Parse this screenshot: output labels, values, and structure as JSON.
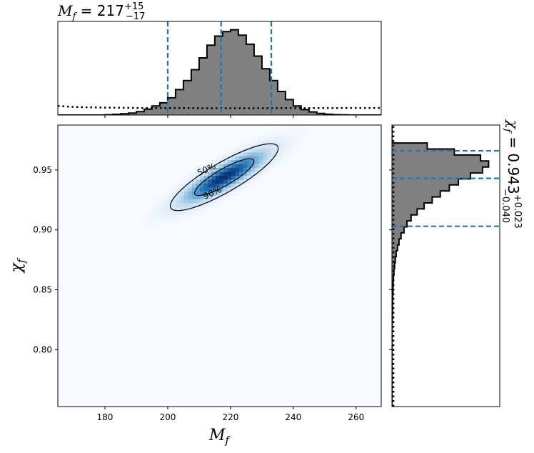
{
  "chart_data": {
    "type": "corner-plot",
    "parameters": {
      "x": {
        "symbol": "M",
        "sub": "f",
        "range": [
          165.0,
          268.0
        ],
        "ticks": [
          180,
          200,
          220,
          240,
          260
        ]
      },
      "y": {
        "symbol": "χ",
        "sub": "f",
        "range": [
          0.7525,
          0.9875
        ],
        "ticks": [
          0.8,
          0.85,
          0.9,
          0.95
        ]
      }
    },
    "top_title": {
      "prefix": "M",
      "sub": "f",
      "eq": " = ",
      "median": "217",
      "plus": "+15",
      "minus": "−17",
      "lines": {
        "lower": 200,
        "median": 217,
        "upper": 233
      }
    },
    "right_title": {
      "prefix": "χ",
      "sub": "f",
      "eq": " = ",
      "median": "0.943",
      "plus": "+0.023",
      "minus": "−0.040",
      "lines": {
        "lower": 0.903,
        "median": 0.943,
        "upper": 0.966
      }
    },
    "hist_mf": {
      "edges": [
        165,
        167.5,
        170,
        172.5,
        175,
        177.5,
        180,
        182.5,
        185,
        187.5,
        190,
        192.5,
        195,
        197.5,
        200,
        202.5,
        205,
        207.5,
        210,
        212.5,
        215,
        217.5,
        220,
        222.5,
        225,
        227.5,
        230,
        232.5,
        235,
        237.5,
        240,
        242.5,
        245,
        247.5,
        250,
        252.5,
        255,
        257.5,
        260,
        262.5,
        265,
        268
      ],
      "counts": [
        0,
        0,
        0,
        0,
        0,
        0,
        0.3,
        0.8,
        1.3,
        2.2,
        3.8,
        6.5,
        10,
        13.5,
        19,
        28,
        38,
        50,
        63,
        77,
        87,
        92,
        94,
        88,
        78,
        65,
        51,
        38,
        26,
        17,
        10,
        6,
        3.5,
        1.8,
        0.9,
        0.4,
        0.2,
        0,
        0,
        0,
        0
      ],
      "ymax": 100,
      "prior": {
        "x": [
          165,
          170,
          175,
          180,
          185,
          190,
          195,
          200,
          205,
          210,
          215,
          220,
          225,
          230,
          235,
          240,
          245,
          250,
          255,
          260,
          265,
          268
        ],
        "y": [
          10,
          9,
          8.5,
          8.2,
          8.0,
          7.8,
          7.7,
          7.6,
          7.6,
          7.5,
          7.5,
          7.5,
          7.5,
          7.5,
          7.6,
          7.6,
          7.6,
          7.7,
          7.7,
          7.8,
          7.8,
          7.8
        ]
      }
    },
    "hist_chi": {
      "edges": [
        0.7525,
        0.7575,
        0.7625,
        0.7675,
        0.7725,
        0.7775,
        0.7825,
        0.7875,
        0.7925,
        0.7975,
        0.8025,
        0.8075,
        0.8125,
        0.8175,
        0.8225,
        0.8275,
        0.8325,
        0.8375,
        0.8425,
        0.8475,
        0.8525,
        0.8575,
        0.8625,
        0.8675,
        0.8725,
        0.8775,
        0.8825,
        0.8875,
        0.8925,
        0.8975,
        0.9025,
        0.9075,
        0.9125,
        0.9175,
        0.9225,
        0.9275,
        0.9325,
        0.9375,
        0.9425,
        0.9475,
        0.9525,
        0.9575,
        0.9625,
        0.9675,
        0.9725,
        0.9775,
        0.9825,
        0.9875
      ],
      "counts": [
        0,
        0,
        0,
        0,
        0,
        0,
        0,
        0,
        0,
        0,
        0,
        0,
        0,
        0.2,
        0.3,
        0.4,
        0.5,
        0.6,
        0.8,
        1.0,
        1.2,
        1.5,
        2.0,
        2.6,
        3.3,
        4.2,
        5.5,
        7,
        9,
        12,
        15,
        19,
        25,
        32,
        40,
        48,
        57,
        66,
        78,
        90,
        96,
        88,
        62,
        35,
        0,
        0,
        0
      ],
      "xmax": 100,
      "prior": {
        "y": [
          0.7525,
          0.9875
        ],
        "x": 1.5
      }
    },
    "density": {
      "center": [
        218,
        0.944
      ],
      "sigma_x": 8.0,
      "sigma_y": 0.013,
      "corr": 0.86,
      "contours": [
        {
          "label": "50%",
          "level": 1.39
        },
        {
          "label": "90%",
          "level": 4.61
        }
      ]
    },
    "colors": {
      "density": [
        "#f7fbff",
        "#c6dbef",
        "#6baed6",
        "#2171b5",
        "#08306b"
      ],
      "hist_fill": "#808080",
      "line": "#1f77b4"
    }
  }
}
